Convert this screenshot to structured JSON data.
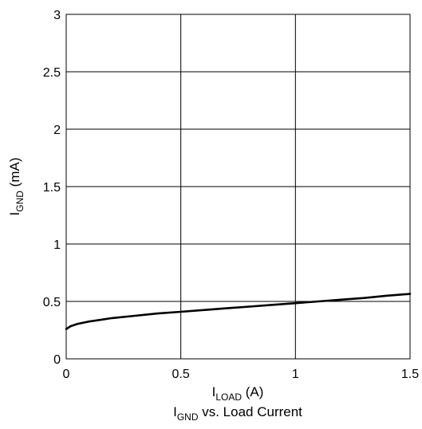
{
  "chart_data": {
    "type": "line",
    "title": "I_GND vs. Load Current",
    "title_parts": {
      "main": "I",
      "sub": "GND",
      "rest": " vs. Load Current"
    },
    "xlabel": "I_LOAD (A)",
    "xlabel_parts": {
      "main": "I",
      "sub": "LOAD",
      "rest": " (A)"
    },
    "ylabel": "I_GND (mA)",
    "ylabel_parts": {
      "main": "I",
      "sub": "GND",
      "rest": " (mA)"
    },
    "xlim": [
      0,
      1.5
    ],
    "ylim": [
      0,
      3
    ],
    "x_ticks": [
      0,
      0.5,
      1,
      1.5
    ],
    "x_tick_labels": [
      "0",
      "0.5",
      "1",
      "1.5"
    ],
    "y_ticks": [
      0,
      0.5,
      1,
      1.5,
      2,
      2.5,
      3
    ],
    "y_tick_labels": [
      "0",
      "0.5",
      "1",
      "1.5",
      "2",
      "2.5",
      "3"
    ],
    "grid": true,
    "series": [
      {
        "color": "#000000",
        "x": [
          0,
          0.02,
          0.05,
          0.1,
          0.2,
          0.3,
          0.4,
          0.5,
          0.6,
          0.7,
          0.8,
          0.9,
          1.0,
          1.1,
          1.2,
          1.3,
          1.4,
          1.5
        ],
        "y": [
          0.26,
          0.285,
          0.305,
          0.325,
          0.355,
          0.375,
          0.395,
          0.41,
          0.425,
          0.44,
          0.455,
          0.47,
          0.485,
          0.5,
          0.515,
          0.53,
          0.55,
          0.565
        ]
      }
    ]
  }
}
